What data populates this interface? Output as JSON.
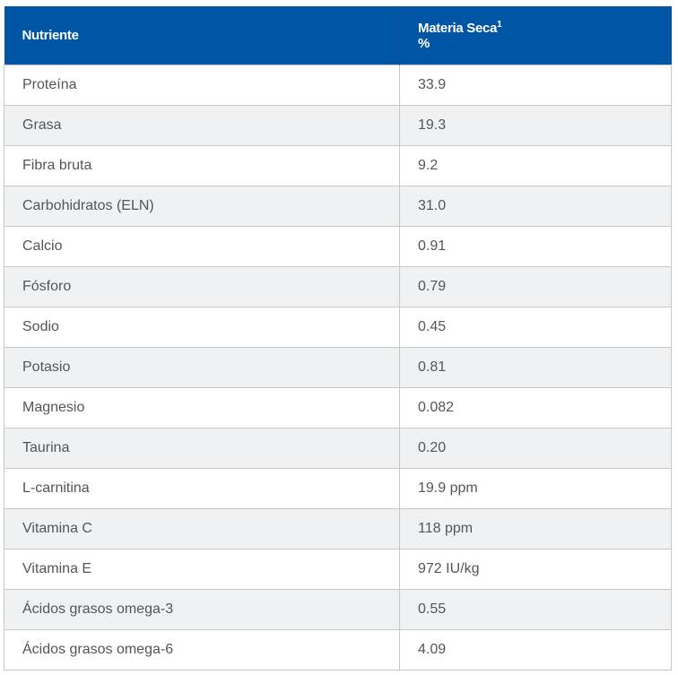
{
  "header": {
    "col1": "Nutriente",
    "col2": "Materia Seca",
    "col2_sup": "1",
    "col2_unit": "%"
  },
  "colors": {
    "header_bg": "#0055a5",
    "alt_row": "#f0f1f3"
  },
  "rows": [
    {
      "name": "Proteína",
      "value": "33.9"
    },
    {
      "name": "Grasa",
      "value": "19.3"
    },
    {
      "name": "Fibra bruta",
      "value": "9.2"
    },
    {
      "name": "Carbohidratos (ELN)",
      "value": "31.0"
    },
    {
      "name": "Calcio",
      "value": "0.91"
    },
    {
      "name": "Fósforo",
      "value": "0.79"
    },
    {
      "name": "Sodio",
      "value": "0.45"
    },
    {
      "name": "Potasio",
      "value": "0.81"
    },
    {
      "name": "Magnesio",
      "value": "0.082"
    },
    {
      "name": "Taurina",
      "value": "0.20"
    },
    {
      "name": "L-carnitina",
      "value": "19.9 ppm"
    },
    {
      "name": "Vitamina C",
      "value": "118 ppm"
    },
    {
      "name": "Vitamina E",
      "value": "972 IU/kg"
    },
    {
      "name": "Ácidos grasos omega-3",
      "value": "0.55"
    },
    {
      "name": "Ácidos grasos omega-6",
      "value": "4.09"
    }
  ]
}
